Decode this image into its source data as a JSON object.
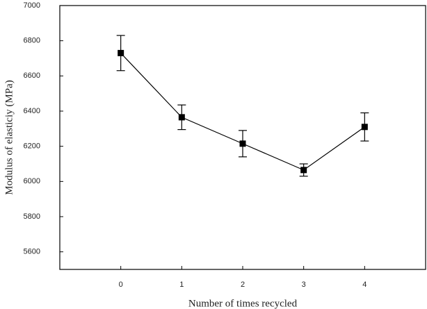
{
  "chart_data": {
    "type": "line",
    "x_label": "Number of times recycled",
    "y_label": "Modulus of elasticiy (MPa)",
    "x": [
      0,
      1,
      2,
      3,
      4
    ],
    "series": [
      {
        "values": [
          6730,
          6365,
          6215,
          6065,
          6310
        ],
        "errors": [
          100,
          70,
          75,
          35,
          80
        ],
        "color": "#000000"
      }
    ],
    "xlim": [
      -1,
      5
    ],
    "xticks": [
      0,
      1,
      2,
      3,
      4
    ],
    "ylim": [
      5500,
      7000
    ],
    "yticks": [
      5600,
      5800,
      6000,
      6200,
      6400,
      6600,
      6800,
      7000
    ]
  }
}
